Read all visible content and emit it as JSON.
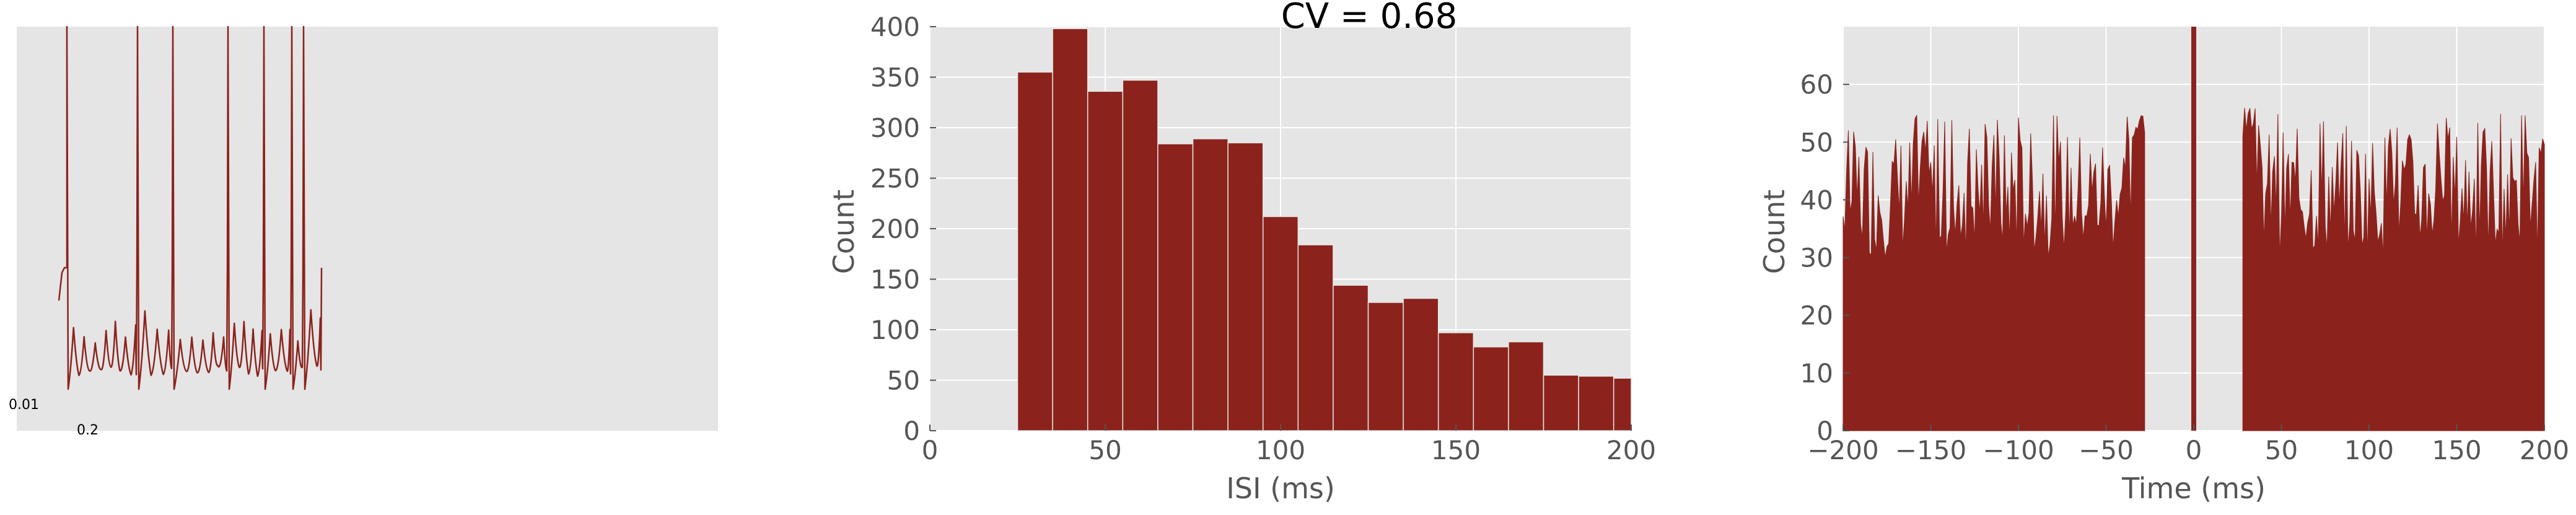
{
  "chart_data": [
    {
      "type": "line",
      "title": "",
      "xlabel": "",
      "ylabel": "",
      "scale_bar": {
        "x_label": "0.2",
        "y_label": "0.01"
      },
      "spike_count": 9,
      "series": [
        {
          "name": ""
        }
      ]
    },
    {
      "type": "bar",
      "title": "CV = 0.68",
      "xlabel": "ISI (ms)",
      "ylabel": "Count",
      "xlim": [
        0,
        200
      ],
      "ylim": [
        0,
        400
      ],
      "xticks": [
        "0",
        "50",
        "100",
        "150",
        "200"
      ],
      "yticks": [
        "0",
        "50",
        "100",
        "150",
        "200",
        "250",
        "300",
        "350",
        "400"
      ],
      "bin_width": 10,
      "bin_starts": [
        25,
        35,
        45,
        55,
        65,
        75,
        85,
        95,
        105,
        115,
        125,
        135,
        145,
        155,
        165,
        175,
        185,
        195
      ],
      "values": [
        355,
        398,
        336,
        347,
        284,
        289,
        285,
        212,
        184,
        144,
        127,
        131,
        97,
        83,
        88,
        55,
        54,
        52
      ],
      "color": "#8b231c",
      "grid": true
    },
    {
      "type": "area",
      "title": "",
      "xlabel": "Time (ms)",
      "ylabel": "Count",
      "xlim": [
        -200,
        200
      ],
      "ylim": [
        0,
        70
      ],
      "xticks": [
        "−200",
        "−150",
        "−100",
        "−50",
        "0",
        "50",
        "100",
        "150",
        "200"
      ],
      "yticks": [
        "0",
        "10",
        "20",
        "30",
        "40",
        "50",
        "60"
      ],
      "gap_ms": [
        -28,
        28
      ],
      "typical_range": [
        30,
        52
      ],
      "peak_near_gap": 56,
      "center_bar_ms": 0,
      "color": "#8b231c",
      "grid": true
    }
  ]
}
